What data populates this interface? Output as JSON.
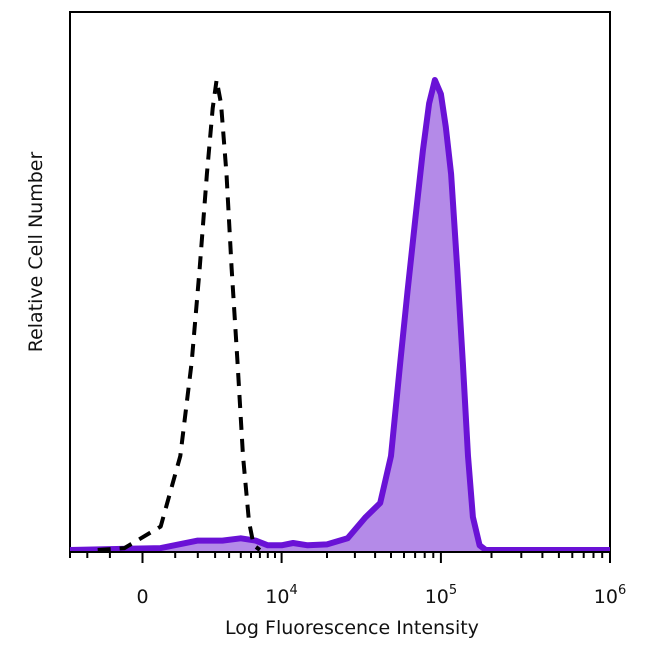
{
  "chart_data": {
    "type": "area",
    "title": "",
    "xlabel": "Log Fluorescence Intensity",
    "ylabel": "Relative Cell Number",
    "x_scale": "biexponential",
    "xlim": [
      -3000,
      1000000
    ],
    "ylim": [
      0,
      1
    ],
    "grid": false,
    "legend": "none",
    "x_ticks": [
      {
        "value": 0,
        "base": "0",
        "exp": ""
      },
      {
        "value": 10000,
        "base": "10",
        "exp": "4"
      },
      {
        "value": 100000,
        "base": "10",
        "exp": "5"
      },
      {
        "value": 1000000,
        "base": "10",
        "exp": "6"
      }
    ],
    "series": [
      {
        "style": "dashed",
        "color": "#000000",
        "fill": false,
        "points": [
          [
            -1500,
            0
          ],
          [
            -500,
            0.004
          ],
          [
            500,
            0.05
          ],
          [
            1200,
            0.2
          ],
          [
            1700,
            0.4
          ],
          [
            2100,
            0.6
          ],
          [
            2500,
            0.8
          ],
          [
            2850,
            0.94
          ],
          [
            3100,
            1.0
          ],
          [
            3400,
            0.95
          ],
          [
            3800,
            0.8
          ],
          [
            4200,
            0.6
          ],
          [
            4700,
            0.4
          ],
          [
            5200,
            0.2
          ],
          [
            5800,
            0.06
          ],
          [
            6300,
            0.01
          ],
          [
            7000,
            0
          ]
        ]
      },
      {
        "style": "solid",
        "color": "#6a12d6",
        "fill": true,
        "fill_color": "#b48ae8",
        "points": [
          [
            -3000,
            0
          ],
          [
            500,
            0.004
          ],
          [
            2000,
            0.02
          ],
          [
            3500,
            0.02
          ],
          [
            5000,
            0.025
          ],
          [
            6500,
            0.02
          ],
          [
            8000,
            0.01
          ],
          [
            10000,
            0.01
          ],
          [
            12000,
            0.015
          ],
          [
            15000,
            0.01
          ],
          [
            20000,
            0.012
          ],
          [
            27000,
            0.025
          ],
          [
            35000,
            0.07
          ],
          [
            43000,
            0.1
          ],
          [
            50000,
            0.2
          ],
          [
            57000,
            0.4
          ],
          [
            63000,
            0.55
          ],
          [
            70000,
            0.7
          ],
          [
            78000,
            0.85
          ],
          [
            85000,
            0.95
          ],
          [
            92000,
            1.0
          ],
          [
            100000,
            0.97
          ],
          [
            107000,
            0.9
          ],
          [
            115000,
            0.8
          ],
          [
            125000,
            0.6
          ],
          [
            135000,
            0.4
          ],
          [
            145000,
            0.2
          ],
          [
            155000,
            0.07
          ],
          [
            170000,
            0.01
          ],
          [
            185000,
            0
          ],
          [
            1000000,
            0
          ]
        ]
      }
    ]
  }
}
